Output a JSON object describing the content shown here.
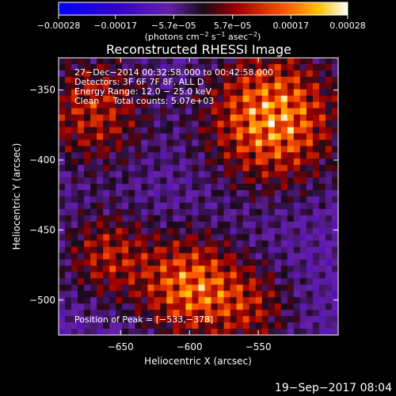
{
  "chart_data": {
    "type": "heatmap",
    "title": "Reconstructed RHESSI Image",
    "xlabel": "Heliocentric X (arcsec)",
    "ylabel": "Heliocentric Y (arcsec)",
    "xlim": [
      -695,
      -492
    ],
    "ylim": [
      -525,
      -327
    ],
    "x_ticks": [
      {
        "value": -650,
        "label": "−650"
      },
      {
        "value": -600,
        "label": "−600"
      },
      {
        "value": -550,
        "label": "−550"
      }
    ],
    "y_ticks": [
      {
        "value": -350,
        "label": "−350"
      },
      {
        "value": -400,
        "label": "−400"
      },
      {
        "value": -450,
        "label": "−450"
      },
      {
        "value": -500,
        "label": "−500"
      }
    ],
    "colorbar": {
      "range": [
        -0.00028,
        0.00028
      ],
      "ticks": [
        {
          "value": -0.00028,
          "label": "−0.00028"
        },
        {
          "value": -0.00017,
          "label": "−0.00017"
        },
        {
          "value": -5.7e-05,
          "label": "−5.7e−05"
        },
        {
          "value": 5.7e-05,
          "label": "5.7e−05"
        },
        {
          "value": 0.00017,
          "label": "0.00017"
        },
        {
          "value": 0.00028,
          "label": "0.00028"
        }
      ],
      "unit_prefix": "(photons cm",
      "unit_exp1": "−2",
      "unit_mid": " s",
      "unit_exp2": "−1",
      "unit_mid2": " asec",
      "unit_exp3": "−2",
      "unit_suffix": ")"
    },
    "annotations": [
      "27−Dec−2014 00:32:58.000 to 00:42:58.000",
      "Detectors: 3F 6F 7F 8F, ALL D",
      "Energy Range: 12.0 − 25.0 keV",
      "Clean     Total counts: 5.07e+03"
    ],
    "peak_label": "Position of Peak = [−533,−378]",
    "sources": [
      {
        "x": -540,
        "y": -370,
        "sigma": 32,
        "amplitude": 1.0
      },
      {
        "x": -600,
        "y": -490,
        "sigma": 25,
        "amplitude": 0.85
      },
      {
        "x": -660,
        "y": -468,
        "sigma": 22,
        "amplitude": 0.55
      },
      {
        "x": -670,
        "y": -365,
        "sigma": 28,
        "amplitude": 0.6
      },
      {
        "x": -555,
        "y": -505,
        "sigma": 22,
        "amplitude": 0.45
      }
    ]
  },
  "timestamp": "19−Sep−2017 08:04"
}
